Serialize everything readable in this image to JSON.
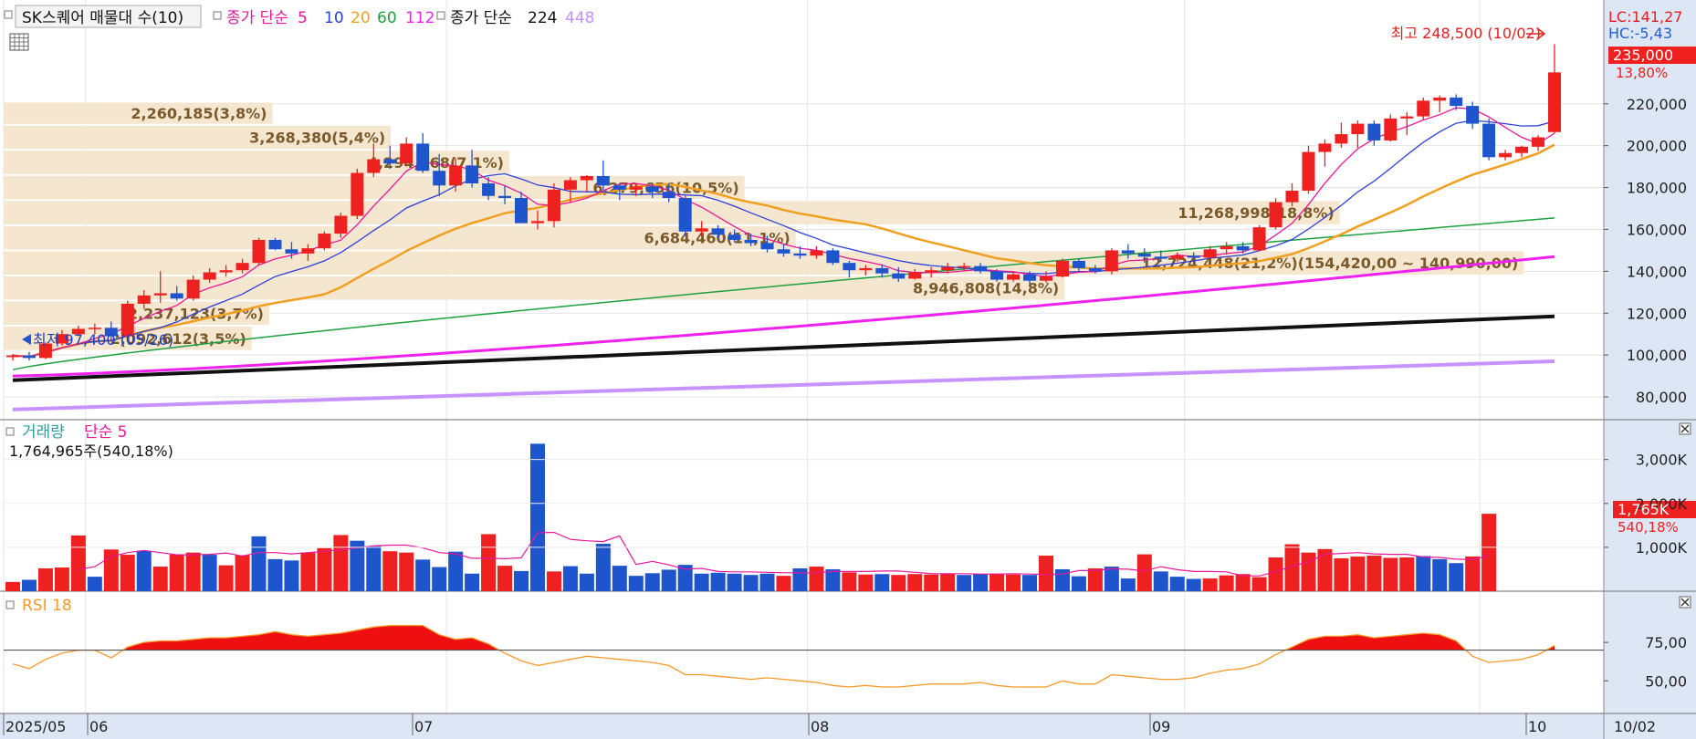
{
  "header": {
    "title": "SK스퀘어 매물대 수(10)",
    "ma_label": "종가 단순",
    "ma_periods": [
      {
        "label": "5",
        "color": "#e8189a"
      },
      {
        "label": "10",
        "color": "#2c3fd8"
      },
      {
        "label": "20",
        "color": "#f0a020"
      },
      {
        "label": "60",
        "color": "#1fa040"
      },
      {
        "label": "112",
        "color": "#ee22ee"
      }
    ],
    "ma2_label": "종가 단순",
    "ma2_periods": [
      {
        "label": "224",
        "color": "#111111"
      },
      {
        "label": "448",
        "color": "#c090ff"
      }
    ]
  },
  "price_panel": {
    "lc_label": "LC:141,27",
    "hc_label": "HC:-5,43",
    "current_price": "235,000",
    "current_change": "13,80%",
    "high_label": "최고 248,500 (10/02)",
    "low_label": "최저 97,400 (05/26)",
    "yticks": [
      "220,000",
      "200,000",
      "180,000",
      "160,000",
      "140,000",
      "120,000",
      "100,000",
      "80,000"
    ]
  },
  "volume_panel": {
    "title": "거래량",
    "ma_label": "단순 5",
    "value_label": "1,764,965주(540,18%)",
    "current_value": "1,765K",
    "current_change": "540,18%",
    "yticks": [
      "3,000K",
      "2,000K",
      "1,000K"
    ]
  },
  "rsi_panel": {
    "title": "RSI 18",
    "yticks": [
      "75,00",
      "50,00"
    ]
  },
  "xaxis": {
    "labels": [
      "2025/05",
      "06",
      "07",
      "08",
      "09",
      "10"
    ],
    "last_date": "10/02"
  },
  "colors": {
    "up": "#ee2020",
    "down": "#1f55cc",
    "rsi_line": "#f59a2a",
    "profile": "#f5e6d0"
  },
  "chart_data": {
    "type": "candlestick",
    "x": [
      "05-26",
      "05-27",
      "05-28",
      "05-29",
      "05-30",
      "06-02",
      "06-04",
      "06-05",
      "06-09",
      "06-10",
      "06-11",
      "06-12",
      "06-13",
      "06-16",
      "06-17",
      "06-18",
      "06-19",
      "06-20",
      "06-23",
      "06-24",
      "06-25",
      "06-26",
      "06-27",
      "06-30",
      "07-01",
      "07-02",
      "07-03",
      "07-04",
      "07-07",
      "07-08",
      "07-09",
      "07-10",
      "07-11",
      "07-14",
      "07-15",
      "07-16",
      "07-17",
      "07-18",
      "07-21",
      "07-22",
      "07-23",
      "07-24",
      "07-25",
      "07-28",
      "07-29",
      "07-30",
      "07-31",
      "08-01",
      "08-04",
      "08-05",
      "08-06",
      "08-07",
      "08-08",
      "08-11",
      "08-12",
      "08-13",
      "08-14",
      "08-18",
      "08-19",
      "08-20",
      "08-21",
      "08-22",
      "08-25",
      "08-26",
      "08-27",
      "08-28",
      "08-29",
      "09-01",
      "09-02",
      "09-03",
      "09-04",
      "09-05",
      "09-08",
      "09-09",
      "09-10",
      "09-11",
      "09-12",
      "09-15",
      "09-16",
      "09-17",
      "09-18",
      "09-19",
      "09-22",
      "09-23",
      "09-24",
      "09-25",
      "09-26",
      "09-29",
      "09-30",
      "10-01",
      "10-02"
    ],
    "ohlc": [
      [
        99000,
        100500,
        97400,
        99800
      ],
      [
        99800,
        101500,
        97400,
        98600
      ],
      [
        98600,
        106000,
        98000,
        105500
      ],
      [
        105500,
        112000,
        104500,
        110000
      ],
      [
        110000,
        114000,
        109000,
        112500
      ],
      [
        112500,
        115000,
        110000,
        113000
      ],
      [
        113000,
        116000,
        107000,
        109000
      ],
      [
        109000,
        126000,
        108500,
        124500
      ],
      [
        124500,
        131000,
        122000,
        128500
      ],
      [
        128500,
        140000,
        125000,
        129500
      ],
      [
        129500,
        133000,
        126000,
        127000
      ],
      [
        127000,
        138000,
        126000,
        136000
      ],
      [
        136000,
        141500,
        134500,
        139500
      ],
      [
        139500,
        143000,
        137500,
        140500
      ],
      [
        140500,
        146000,
        139000,
        144000
      ],
      [
        144000,
        156000,
        143000,
        155000
      ],
      [
        155000,
        156000,
        150000,
        150500
      ],
      [
        150500,
        154000,
        146000,
        148500
      ],
      [
        148500,
        153000,
        145000,
        151000
      ],
      [
        151000,
        159000,
        150000,
        158000
      ],
      [
        158000,
        168000,
        156000,
        166500
      ],
      [
        166500,
        189000,
        165000,
        187000
      ],
      [
        187000,
        201000,
        185000,
        193500
      ],
      [
        193500,
        200000,
        189000,
        191500
      ],
      [
        191500,
        204000,
        190000,
        201000
      ],
      [
        201000,
        206000,
        187000,
        188000
      ],
      [
        188000,
        196000,
        176000,
        181000
      ],
      [
        181000,
        194000,
        178000,
        190500
      ],
      [
        190500,
        198000,
        180000,
        182000
      ],
      [
        182000,
        185000,
        174000,
        176000
      ],
      [
        176000,
        181000,
        172000,
        175000
      ],
      [
        175000,
        178000,
        163000,
        163000
      ],
      [
        163000,
        169000,
        160000,
        164000
      ],
      [
        164000,
        182000,
        161000,
        179000
      ],
      [
        179000,
        185000,
        173000,
        183500
      ],
      [
        183500,
        186000,
        178000,
        185500
      ],
      [
        185500,
        193000,
        179000,
        181000
      ],
      [
        181000,
        182000,
        174000,
        179000
      ],
      [
        179000,
        182000,
        176000,
        180500
      ],
      [
        180500,
        182000,
        175000,
        178000
      ],
      [
        178000,
        182000,
        173000,
        175000
      ],
      [
        175000,
        176000,
        157000,
        159000
      ],
      [
        159000,
        164000,
        157000,
        160500
      ],
      [
        160500,
        162000,
        156000,
        157500
      ],
      [
        157500,
        160000,
        154000,
        155000
      ],
      [
        155000,
        158000,
        152000,
        153500
      ],
      [
        153500,
        157000,
        149000,
        150500
      ],
      [
        150500,
        153000,
        147000,
        148500
      ],
      [
        148500,
        152000,
        146000,
        147500
      ],
      [
        147500,
        152000,
        146000,
        150000
      ],
      [
        150000,
        151000,
        143000,
        144000
      ],
      [
        144000,
        145000,
        137000,
        140500
      ],
      [
        140500,
        143000,
        138000,
        141500
      ],
      [
        141500,
        143000,
        137000,
        139000
      ],
      [
        139000,
        142000,
        135000,
        136500
      ],
      [
        136500,
        141000,
        136000,
        139500
      ],
      [
        139500,
        142000,
        137000,
        140500
      ],
      [
        140500,
        144000,
        139000,
        142000
      ],
      [
        142000,
        144000,
        140000,
        142500
      ],
      [
        142500,
        144000,
        139000,
        140000
      ],
      [
        140000,
        141000,
        135000,
        136000
      ],
      [
        136000,
        140000,
        135000,
        138500
      ],
      [
        138500,
        140000,
        134000,
        135500
      ],
      [
        135500,
        140000,
        134500,
        137500
      ],
      [
        137500,
        146000,
        137000,
        145000
      ],
      [
        145000,
        146000,
        140000,
        141500
      ],
      [
        141500,
        143000,
        139000,
        140000
      ],
      [
        140000,
        151000,
        138500,
        150000
      ],
      [
        150000,
        153000,
        146000,
        148500
      ],
      [
        148500,
        151000,
        144000,
        147000
      ],
      [
        147000,
        150000,
        144500,
        146000
      ],
      [
        146000,
        149000,
        144500,
        147500
      ],
      [
        147500,
        149000,
        144000,
        146500
      ],
      [
        146500,
        152000,
        145000,
        150500
      ],
      [
        150500,
        154000,
        148000,
        152000
      ],
      [
        152000,
        154000,
        148500,
        150000
      ],
      [
        150000,
        162000,
        149500,
        161000
      ],
      [
        161000,
        175000,
        160000,
        173000
      ],
      [
        173000,
        182000,
        171000,
        178500
      ],
      [
        178500,
        200000,
        177000,
        197000
      ],
      [
        197000,
        203000,
        190000,
        201000
      ],
      [
        201000,
        211000,
        199000,
        205500
      ],
      [
        205500,
        212000,
        199000,
        210500
      ],
      [
        210500,
        212000,
        200000,
        202500
      ],
      [
        202500,
        215000,
        202000,
        213000
      ],
      [
        213000,
        216000,
        205000,
        214000
      ],
      [
        214000,
        223000,
        212500,
        221500
      ],
      [
        221500,
        224000,
        216000,
        223000
      ],
      [
        223000,
        224500,
        217000,
        219000
      ],
      [
        219000,
        221000,
        208000,
        210500
      ],
      [
        210500,
        213000,
        193000,
        194500
      ],
      [
        194500,
        198000,
        193000,
        196500
      ],
      [
        196500,
        200000,
        194500,
        199500
      ],
      [
        199500,
        205000,
        197500,
        204000
      ],
      [
        206500,
        248500,
        206000,
        235000
      ]
    ],
    "volume": [
      210,
      260,
      520,
      540,
      1270,
      330,
      950,
      830,
      920,
      560,
      830,
      880,
      830,
      590,
      820,
      1250,
      730,
      700,
      880,
      980,
      1280,
      1150,
      1030,
      910,
      880,
      720,
      550,
      900,
      400,
      1300,
      580,
      460,
      3360,
      450,
      570,
      400,
      1080,
      580,
      350,
      410,
      490,
      600,
      400,
      420,
      400,
      370,
      400,
      350,
      520,
      560,
      500,
      430,
      380,
      390,
      370,
      390,
      380,
      400,
      370,
      390,
      400,
      380,
      370,
      810,
      500,
      340,
      520,
      560,
      290,
      840,
      450,
      330,
      280,
      290,
      360,
      390,
      320,
      770,
      1070,
      880,
      960,
      750,
      790,
      810,
      760,
      770,
      800,
      730,
      640,
      790,
      1764
    ],
    "volume_colors": [
      "r",
      "b",
      "r",
      "r",
      "r",
      "b",
      "r",
      "r",
      "b",
      "r",
      "r",
      "r",
      "b",
      "r",
      "r",
      "b",
      "b",
      "b",
      "r",
      "r",
      "r",
      "b",
      "b",
      "r",
      "r",
      "b",
      "b",
      "b",
      "b",
      "r",
      "r",
      "b",
      "b",
      "r",
      "b",
      "b",
      "b",
      "b",
      "b",
      "b",
      "b",
      "b",
      "b",
      "b",
      "b",
      "b",
      "b",
      "r",
      "b",
      "r",
      "b",
      "r",
      "r",
      "b",
      "r",
      "r",
      "r",
      "r",
      "b",
      "b",
      "r",
      "r",
      "b",
      "r",
      "b",
      "b",
      "r",
      "b",
      "b",
      "r",
      "b",
      "b",
      "b",
      "r",
      "r",
      "r",
      "r",
      "r",
      "r",
      "r",
      "r",
      "r",
      "r",
      "r",
      "r",
      "r",
      "b",
      "b",
      "b",
      "r",
      "r"
    ],
    "volume_ma": [
      null,
      null,
      null,
      null,
      490,
      560,
      790,
      880,
      930,
      880,
      830,
      830,
      840,
      870,
      800,
      880,
      880,
      850,
      880,
      910,
      940,
      990,
      1030,
      1050,
      1050,
      990,
      880,
      850,
      750,
      750,
      740,
      760,
      1330,
      1340,
      1180,
      1150,
      1130,
      1260,
      610,
      680,
      600,
      500,
      520,
      450,
      440,
      440,
      430,
      420,
      420,
      420,
      450,
      450,
      450,
      460,
      460,
      430,
      400,
      400,
      400,
      390,
      390,
      400,
      390,
      380,
      390,
      470,
      470,
      510,
      500,
      460,
      560,
      490,
      450,
      450,
      440,
      350,
      350,
      440,
      570,
      670,
      840,
      860,
      880,
      850,
      840,
      840,
      780,
      770,
      730,
      720,
      810
    ],
    "rsi": [
      61,
      58,
      64,
      68,
      70,
      70,
      65,
      72,
      75,
      76,
      76,
      77,
      78,
      78,
      79,
      80,
      82,
      80,
      79,
      80,
      81,
      83,
      85,
      86,
      86,
      86,
      80,
      77,
      78,
      74,
      68,
      63,
      60,
      62,
      64,
      66,
      65,
      64,
      63,
      62,
      60,
      54,
      54,
      53,
      52,
      51,
      52,
      51,
      50,
      49,
      47,
      46,
      47,
      46,
      46,
      47,
      48,
      48,
      48,
      49,
      47,
      46,
      46,
      46,
      50,
      48,
      48,
      54,
      53,
      52,
      51,
      51,
      52,
      55,
      57,
      58,
      61,
      67,
      72,
      77,
      79,
      79,
      80,
      78,
      79,
      80,
      81,
      80,
      76,
      66,
      62,
      63,
      64,
      67,
      73
    ],
    "profile": [
      {
        "label": "2,260,185(3,8%)",
        "lo": 210000,
        "hi": 221000,
        "len": 0.168
      },
      {
        "label": "3,268,380(5,4%)",
        "lo": 198000,
        "hi": 210000,
        "len": 0.242
      },
      {
        "label": "4,294,468(7,1%)",
        "lo": 186000,
        "hi": 198000,
        "len": 0.316
      },
      {
        "label": "6,279,656(10,5%)",
        "lo": 174000,
        "hi": 186000,
        "len": 0.463
      },
      {
        "label": "11,268,998(18,8%)",
        "lo": 162000,
        "hi": 174000,
        "len": 0.835
      },
      {
        "label": "6,684,460(11,1%)",
        "lo": 150000,
        "hi": 162000,
        "len": 0.495
      },
      {
        "label": "12,724,448(21,2%)(154,420,00 ~ 140,990,00)",
        "lo": 138000,
        "hi": 150000,
        "len": 0.95
      },
      {
        "label": "8,946,808(14,8%)",
        "lo": 126000,
        "hi": 138000,
        "len": 0.663
      },
      {
        "label": "2,237,123(3,7%)",
        "lo": 114000,
        "hi": 126000,
        "len": 0.166
      },
      {
        "label": "2,092,612(3,5%)",
        "lo": 102000,
        "hi": 114000,
        "len": 0.155
      }
    ],
    "ma_series": {
      "ma5_endpoints": [
        100000,
        206000
      ],
      "ma224": [
        88000,
        118500
      ],
      "ma448": [
        74000,
        97000
      ]
    },
    "ylim_price": [
      70000,
      260000
    ],
    "ylim_volume": [
      0,
      3700
    ],
    "ylim_rsi": [
      30,
      100
    ]
  }
}
